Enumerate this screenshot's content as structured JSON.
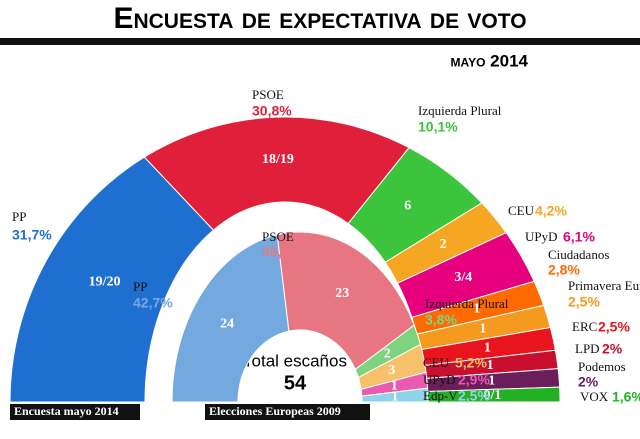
{
  "title": "Encuesta de expectativa de voto",
  "date": "mayo 2014",
  "center_label": "Total escaños",
  "total_seats": "54",
  "chart_data": [
    {
      "type": "semi-donut",
      "name": "Encuesta mayo 2014",
      "categories": [
        "PP",
        "PSOE",
        "Izquierda Plural",
        "CEU",
        "UPyD",
        "Ciudadanos",
        "Primavera Europea",
        "ERC",
        "LPD",
        "Podemos",
        "VOX"
      ],
      "values": [
        31.7,
        30.8,
        10.1,
        4.2,
        6.1,
        2.8,
        2.5,
        2.5,
        2,
        2,
        1.6
      ],
      "value_labels": [
        "31,7%",
        "30,8%",
        "10,1%",
        "4,2%",
        "6,1%",
        "2,8%",
        "2,5%",
        "2,5%",
        "2%",
        "2%",
        "1,6%"
      ],
      "seat_labels": [
        "19/20",
        "18/19",
        "6",
        "2",
        "3/4",
        "1",
        "1",
        "1",
        "1",
        "1",
        "0/1"
      ],
      "colors": [
        "#1f6fd1",
        "#e0203a",
        "#3cc43c",
        "#f5a623",
        "#e6007e",
        "#ff6a00",
        "#f59a1e",
        "#e8141e",
        "#c8102e",
        "#6a1e5a",
        "#23b123"
      ]
    },
    {
      "type": "semi-donut",
      "name": "Elecciones Europeas 2009",
      "categories": [
        "PP",
        "PSOE",
        "Izquierda Plural",
        "CEU",
        "UPyD",
        "Edp-V"
      ],
      "values": [
        42.7,
        39.3,
        3.8,
        5.2,
        2.9,
        2.5
      ],
      "value_labels": [
        "42,7%",
        "39,3%",
        "3,8%",
        "5,2%",
        "2,9%",
        "2,5%"
      ],
      "seat_labels": [
        "24",
        "23",
        "2",
        "3",
        "1",
        "1"
      ],
      "colors": [
        "#74a9e0",
        "#e87582",
        "#7ed47e",
        "#f7c06a",
        "#ea5ab0",
        "#8fd3e8"
      ]
    }
  ]
}
